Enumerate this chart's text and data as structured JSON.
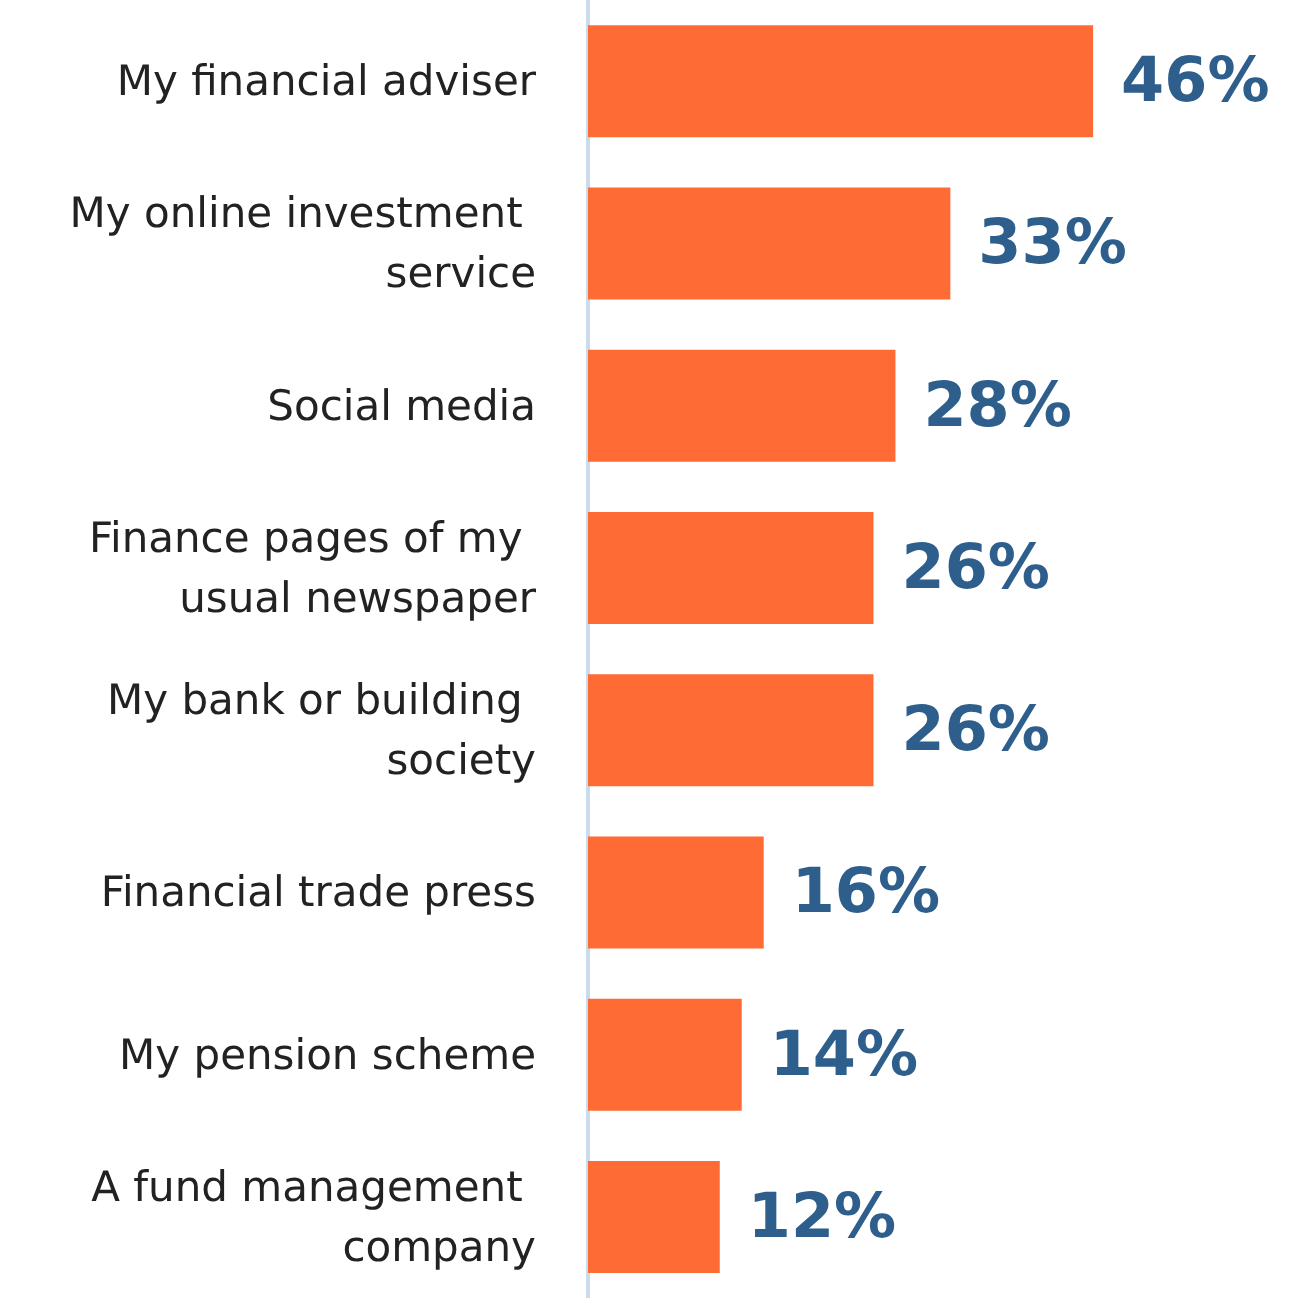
{
  "chart_data": {
    "type": "bar",
    "orientation": "horizontal",
    "categories": [
      "My financial adviser",
      "My online investment service",
      "Social media",
      "Finance pages of my usual newspaper",
      "My bank or building society",
      "Financial trade press",
      "My pension scheme",
      "A fund management company"
    ],
    "values": [
      46,
      33,
      28,
      26,
      26,
      16,
      14,
      12
    ],
    "value_labels": [
      "46%",
      "33%",
      "28%",
      "26%",
      "26%",
      "16%",
      "14%",
      "12%"
    ],
    "color": "#ff6b35",
    "grid": false,
    "tick_labels": "y"
  }
}
